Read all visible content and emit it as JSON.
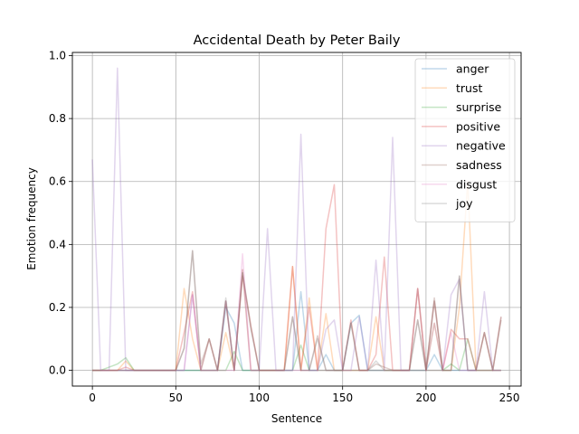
{
  "chart_data": {
    "type": "line",
    "title": "Accidental Death by Peter Baily",
    "xlabel": "Sentence",
    "ylabel": "Emotion frequency",
    "xlim": [
      -12,
      257
    ],
    "ylim": [
      -0.05,
      1.01
    ],
    "xticks": [
      0,
      50,
      100,
      150,
      200,
      250
    ],
    "yticks": [
      0.0,
      0.2,
      0.4,
      0.6,
      0.8,
      1.0
    ],
    "xtick_labels": [
      "0",
      "50",
      "100",
      "150",
      "200",
      "250"
    ],
    "ytick_labels": [
      "0.0",
      "0.2",
      "0.4",
      "0.6",
      "0.8",
      "1.0"
    ],
    "grid": true,
    "legend_position": "top-right",
    "x": [
      0,
      5,
      10,
      15,
      20,
      25,
      30,
      35,
      40,
      45,
      50,
      55,
      60,
      65,
      70,
      75,
      80,
      85,
      90,
      95,
      100,
      105,
      110,
      115,
      120,
      125,
      130,
      135,
      140,
      145,
      150,
      155,
      160,
      165,
      170,
      175,
      180,
      185,
      190,
      195,
      200,
      205,
      210,
      215,
      220,
      225,
      230,
      235,
      240,
      245
    ],
    "series": [
      {
        "name": "anger",
        "color": "#1f77b4",
        "values": [
          0,
          0,
          0,
          0,
          0,
          0,
          0,
          0,
          0,
          0,
          0,
          0,
          0,
          0,
          0,
          0,
          0.2,
          0.15,
          0,
          0,
          0,
          0,
          0,
          0,
          0,
          0.25,
          0,
          0,
          0.05,
          0,
          0,
          0.15,
          0.175,
          0,
          0,
          0,
          0,
          0,
          0,
          0,
          0,
          0.05,
          0,
          0,
          0,
          0,
          0,
          0,
          0,
          0
        ]
      },
      {
        "name": "trust",
        "color": "#ff7f0e",
        "values": [
          0,
          0,
          0,
          0,
          0.03,
          0,
          0,
          0,
          0,
          0,
          0,
          0.26,
          0.1,
          0,
          0,
          0,
          0.12,
          0,
          0.32,
          0,
          0,
          0,
          0,
          0,
          0.33,
          0,
          0.23,
          0,
          0.18,
          0,
          0,
          0,
          0,
          0,
          0.17,
          0,
          0,
          0,
          0,
          0.26,
          0,
          0.15,
          0,
          0,
          0.2,
          0.6,
          0,
          0,
          0,
          0
        ]
      },
      {
        "name": "surprise",
        "color": "#2ca02c",
        "values": [
          0,
          0,
          0.01,
          0.02,
          0.04,
          0,
          0,
          0,
          0,
          0,
          0,
          0,
          0,
          0,
          0,
          0,
          0,
          0.06,
          0,
          0,
          0,
          0,
          0,
          0,
          0,
          0.08,
          0,
          0,
          0,
          0,
          0,
          0,
          0,
          0,
          0,
          0,
          0,
          0,
          0,
          0,
          0,
          0,
          0,
          0.02,
          0,
          0.1,
          0,
          0,
          0,
          0
        ]
      },
      {
        "name": "positive",
        "color": "#d62728",
        "values": [
          0,
          0,
          0,
          0,
          0.01,
          0,
          0,
          0,
          0,
          0,
          0,
          0.12,
          0.25,
          0,
          0.1,
          0,
          0.22,
          0,
          0.3,
          0.14,
          0,
          0,
          0,
          0,
          0.33,
          0,
          0.2,
          0,
          0.45,
          0.59,
          0,
          0.16,
          0,
          0,
          0.05,
          0.36,
          0,
          0,
          0,
          0.26,
          0,
          0.22,
          0,
          0.13,
          0.1,
          0.1,
          0,
          0.12,
          0,
          0.17
        ]
      },
      {
        "name": "negative",
        "color": "#9467bd",
        "values": [
          0.67,
          0,
          0,
          0.96,
          0,
          0,
          0,
          0,
          0,
          0,
          0,
          0,
          0.24,
          0,
          0,
          0,
          0.22,
          0,
          0.32,
          0,
          0,
          0.45,
          0,
          0,
          0,
          0.75,
          0,
          0,
          0.13,
          0.16,
          0,
          0,
          0.17,
          0,
          0.35,
          0,
          0.74,
          0,
          0,
          0.26,
          0,
          0.15,
          0,
          0.24,
          0.29,
          0,
          0,
          0.25,
          0,
          0
        ]
      },
      {
        "name": "sadness",
        "color": "#8c564b",
        "values": [
          0,
          0,
          0,
          0,
          0,
          0,
          0,
          0,
          0,
          0,
          0,
          0.07,
          0.38,
          0.02,
          0.1,
          0,
          0.22,
          0,
          0.31,
          0.14,
          0,
          0,
          0,
          0,
          0.17,
          0,
          0,
          0.11,
          0,
          0,
          0,
          0.15,
          0,
          0,
          0.02,
          0.01,
          0,
          0,
          0,
          0.16,
          0,
          0.23,
          0,
          0,
          0.3,
          0,
          0,
          0.12,
          0,
          0.16
        ]
      },
      {
        "name": "disgust",
        "color": "#e377c2",
        "values": [
          0,
          0,
          0,
          0,
          0,
          0,
          0,
          0,
          0,
          0,
          0,
          0,
          0.24,
          0,
          0,
          0,
          0,
          0,
          0.37,
          0,
          0,
          0,
          0,
          0,
          0,
          0,
          0,
          0,
          0,
          0,
          0,
          0,
          0,
          0,
          0,
          0,
          0,
          0,
          0,
          0,
          0,
          0,
          0,
          0.12,
          0,
          0,
          0,
          0,
          0,
          0
        ]
      },
      {
        "name": "joy",
        "color": "#7f7f7f",
        "values": [
          0,
          0,
          0,
          0,
          0,
          0,
          0,
          0,
          0,
          0,
          0,
          0.07,
          0.38,
          0,
          0.1,
          0,
          0.23,
          0,
          0.31,
          0.13,
          0,
          0,
          0,
          0,
          0.17,
          0,
          0,
          0.1,
          0,
          0,
          0,
          0.15,
          0,
          0,
          0.03,
          0,
          0,
          0,
          0,
          0.16,
          0,
          0.22,
          0,
          0,
          0.3,
          0,
          0,
          0.12,
          0,
          0.17
        ]
      }
    ]
  }
}
